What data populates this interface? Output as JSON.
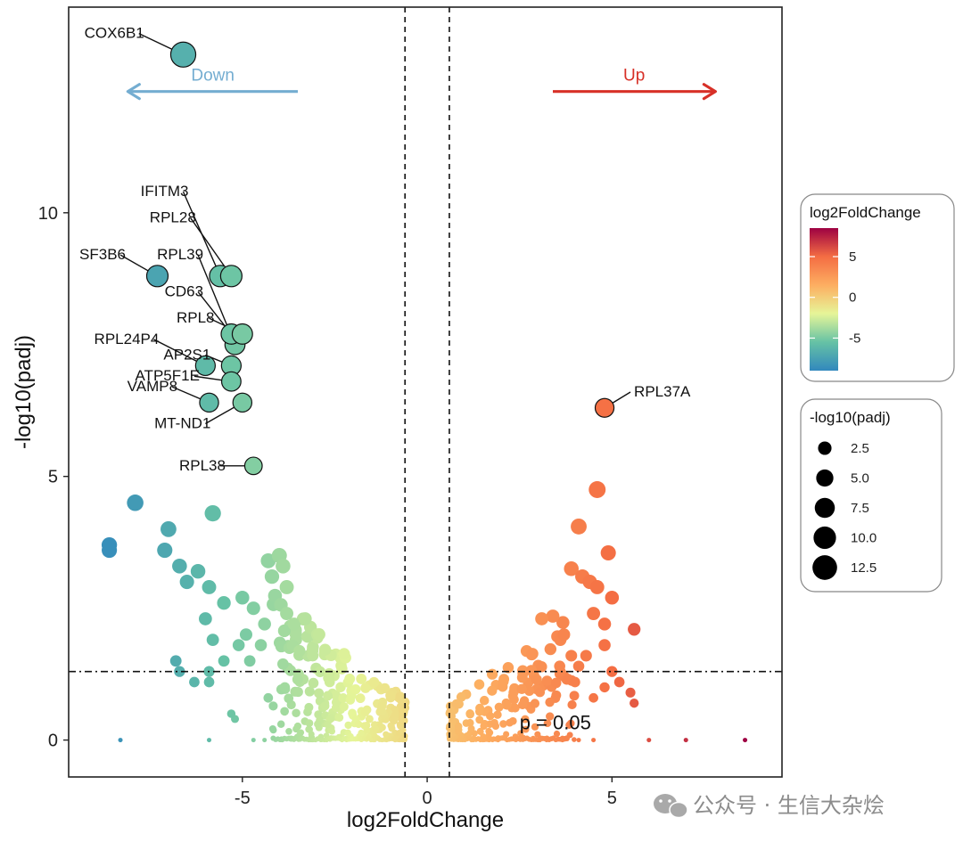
{
  "chart_data": {
    "type": "scatter",
    "title": "",
    "xlabel": "log2FoldChange",
    "ylabel": "-log10(padj)",
    "xlim": [
      -9.7,
      9.6
    ],
    "ylim": [
      -0.7,
      13.9
    ],
    "x_ticks": [
      -5,
      0,
      5
    ],
    "x_tick_labels": [
      "-5",
      "0",
      "5"
    ],
    "y_ticks": [
      0,
      5,
      10
    ],
    "y_tick_labels": [
      "0",
      "5",
      "10"
    ],
    "grid": false,
    "fc_thresholds": [
      -0.6,
      0.6
    ],
    "padj_threshold_line": 1.3,
    "threshold_label": "p = 0.05",
    "threshold_label_pos": [
      2.5,
      0.2
    ],
    "direction_arrows": [
      {
        "label": "Down",
        "from": -3.5,
        "to": -8.1,
        "y": 12.3,
        "color": "#74add1"
      },
      {
        "label": "Up",
        "from": 3.4,
        "to": 7.8,
        "y": 12.3,
        "color": "#d73027"
      }
    ],
    "labeled_points": [
      {
        "gene": "COX6B1",
        "x": -6.6,
        "y": 13.0,
        "text_pos": [
          -7.8,
          13.4
        ]
      },
      {
        "gene": "IFITM3",
        "x": -5.6,
        "y": 8.8,
        "text_pos": [
          -6.6,
          10.4
        ]
      },
      {
        "gene": "RPL28",
        "x": -5.3,
        "y": 8.8,
        "text_pos": [
          -6.4,
          9.9
        ]
      },
      {
        "gene": "SF3B6",
        "x": -7.3,
        "y": 8.8,
        "text_pos": [
          -8.3,
          9.2
        ]
      },
      {
        "gene": "RPL39",
        "x": -5.2,
        "y": 7.5,
        "text_pos": [
          -6.2,
          9.2
        ]
      },
      {
        "gene": "CD63",
        "x": -5.3,
        "y": 7.7,
        "text_pos": [
          -6.2,
          8.5
        ]
      },
      {
        "gene": "RPL8",
        "x": -5.0,
        "y": 7.7,
        "text_pos": [
          -5.9,
          8.0
        ]
      },
      {
        "gene": "RPL24P4",
        "x": -6.0,
        "y": 7.1,
        "text_pos": [
          -7.4,
          7.6
        ]
      },
      {
        "gene": "AP2S1",
        "x": -5.3,
        "y": 7.1,
        "text_pos": [
          -6.0,
          7.3
        ]
      },
      {
        "gene": "ATP5F1E",
        "x": -5.3,
        "y": 6.8,
        "text_pos": [
          -6.3,
          6.9
        ]
      },
      {
        "gene": "VAMP8",
        "x": -5.9,
        "y": 6.4,
        "text_pos": [
          -6.9,
          6.7
        ]
      },
      {
        "gene": "MT-ND1",
        "x": -5.0,
        "y": 6.4,
        "text_pos": [
          -6.0,
          6.0
        ]
      },
      {
        "gene": "RPL38",
        "x": -4.7,
        "y": 5.2,
        "text_pos": [
          -5.6,
          5.2
        ]
      },
      {
        "gene": "RPL37A",
        "x": 4.8,
        "y": 6.3,
        "text_pos": [
          5.5,
          6.6
        ]
      }
    ],
    "colorbar": {
      "title": "log2FoldChange",
      "range": [
        -9.0,
        8.5
      ],
      "ticks": [
        5,
        0,
        -5
      ],
      "tick_labels": [
        "5",
        "0",
        "-5"
      ]
    },
    "size_legend": {
      "title": "-log10(padj)",
      "values": [
        2.5,
        5.0,
        7.5,
        10.0,
        12.5
      ],
      "labels": [
        "2.5",
        "5.0",
        "7.5",
        "10.0",
        "12.5"
      ]
    },
    "palette": [
      "#3288bd",
      "#66c2a5",
      "#abdda4",
      "#e6f598",
      "#fee08b",
      "#fdae61",
      "#f46d43",
      "#d53e4f",
      "#9e0142"
    ]
  },
  "watermark": {
    "text": "公众号 · 生信大杂烩"
  }
}
